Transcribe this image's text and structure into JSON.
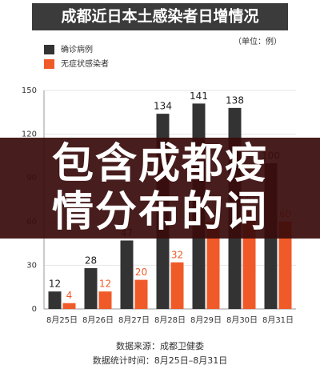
{
  "chart_data": {
    "type": "bar",
    "title": "成都近日本土感染者日增情况",
    "unit": "（单位：例）",
    "categories": [
      "8月25日",
      "8月26日",
      "8月27日",
      "8月28日",
      "8月29日",
      "8月30日",
      "8月31日"
    ],
    "series": [
      {
        "name": "无症状感染者",
        "color": "#f05a28",
        "values": [
          4,
          12,
          20,
          32,
          60,
          70,
          60
        ]
      },
      {
        "name": "确诊病例",
        "color": "#333333",
        "values": [
          12,
          28,
          47,
          134,
          141,
          138,
          100
        ]
      }
    ],
    "ylim": [
      0,
      150
    ],
    "yticks": [
      0,
      30,
      60,
      90,
      120,
      150
    ],
    "grid": true,
    "source": "数据来源：成都卫健委",
    "period": "数据统计时间：8月25日–8月31日"
  },
  "overlay": {
    "text": "包含成都疫情分布的词"
  }
}
